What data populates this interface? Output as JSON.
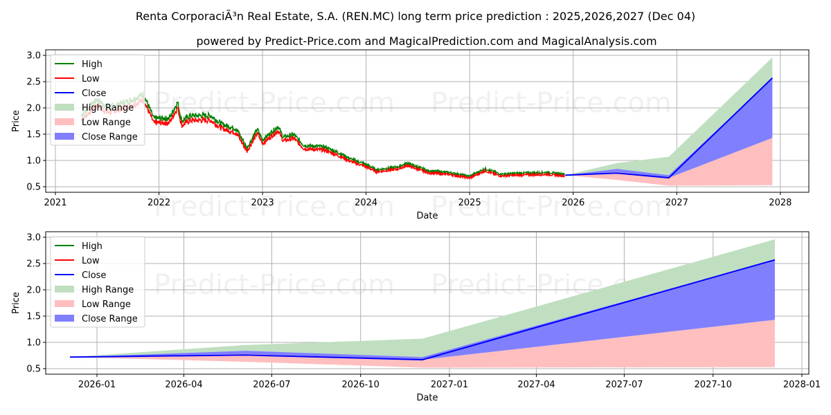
{
  "title": "Renta CorporaciÃ³n Real Estate, S.A. (REN.MC) long term price prediction : 2025,2026,2027 (Dec 04)",
  "subtitle": "powered by Predict-Price.com and MagicalPrediction.com and MagicalAnalysis.com",
  "watermark": "Predict-Price.com",
  "colors": {
    "high": "#008000",
    "low": "#ff0000",
    "close": "#0000ff",
    "high_range": "#c0dfc0",
    "low_range": "#ffbfbf",
    "close_range": "#8080ff"
  },
  "legend": [
    "High",
    "Low",
    "Close",
    "High Range",
    "Low Range",
    "Close Range"
  ],
  "chart_data": [
    {
      "type": "line",
      "name": "long-term",
      "xlabel": "Date",
      "ylabel": "Price",
      "ylim": [
        0.4,
        3.07
      ],
      "xlim": [
        2020.9,
        2028.27
      ],
      "yticks": [
        "0.5",
        "1.0",
        "1.5",
        "2.0",
        "2.5",
        "3.0"
      ],
      "xticks": [
        "2021",
        "2022",
        "2023",
        "2024",
        "2025",
        "2026",
        "2027",
        "2028"
      ],
      "grid": true,
      "legend_position": "top-left",
      "history_close_approx": {
        "x": [
          2021.25,
          2021.4,
          2021.5,
          2021.6,
          2021.75,
          2021.85,
          2021.95,
          2022.1,
          2022.18,
          2022.22,
          2022.3,
          2022.5,
          2022.6,
          2022.75,
          2022.85,
          2022.95,
          2023.0,
          2023.15,
          2023.2,
          2023.3,
          2023.4,
          2023.6,
          2023.75,
          2023.85,
          2024.0,
          2024.1,
          2024.3,
          2024.4,
          2024.6,
          2024.8,
          2025.0,
          2025.15,
          2025.25,
          2025.3,
          2025.55,
          2025.75,
          2025.92
        ],
        "y": [
          1.8,
          2.1,
          1.95,
          2.0,
          2.1,
          2.2,
          1.75,
          1.75,
          2.05,
          1.7,
          1.8,
          1.8,
          1.65,
          1.55,
          1.2,
          1.55,
          1.35,
          1.6,
          1.4,
          1.45,
          1.25,
          1.22,
          1.1,
          1.0,
          0.9,
          0.8,
          0.85,
          0.92,
          0.78,
          0.75,
          0.68,
          0.82,
          0.75,
          0.72,
          0.74,
          0.75,
          0.72
        ]
      }
    },
    {
      "type": "line",
      "name": "forecast",
      "xlabel": "Date",
      "ylabel": "Price",
      "ylim": [
        0.4,
        3.07
      ],
      "yticks": [
        "0.5",
        "1.0",
        "1.5",
        "2.0",
        "2.5",
        "3.0"
      ],
      "xticks": [
        "2026-01",
        "2026-04",
        "2026-07",
        "2026-10",
        "2027-01",
        "2027-04",
        "2027-07",
        "2027-10",
        "2028-01"
      ],
      "grid": true,
      "legend_position": "top-left"
    }
  ],
  "forecast": {
    "dates": [
      "2025-12-04",
      "2026-06-04",
      "2026-12-04",
      "2027-12-04"
    ],
    "close": [
      0.72,
      0.76,
      0.67,
      2.57
    ],
    "high_range_top": [
      0.72,
      0.95,
      1.07,
      2.96
    ],
    "close_range_top": [
      0.72,
      0.84,
      0.72,
      2.57
    ],
    "close_range_bottom": [
      0.72,
      0.78,
      0.67,
      1.43
    ],
    "low_range_bottom": [
      0.72,
      0.63,
      0.52,
      0.53
    ]
  }
}
